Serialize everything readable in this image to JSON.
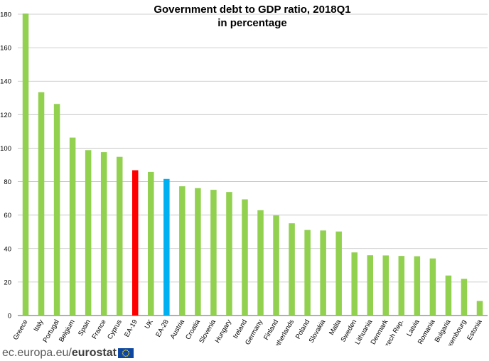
{
  "chart_data": {
    "type": "bar",
    "title_lines": [
      "Government debt to GDP ratio, 2018Q1",
      "in percentage"
    ],
    "categories": [
      "Greece",
      "Italy",
      "Portugal",
      "Belgium",
      "Spain",
      "France",
      "Cyprus",
      "EA-19",
      "UK",
      "EA-28",
      "Austria",
      "Croatia",
      "Slovenia",
      "Hungary",
      "Ireland",
      "Germany",
      "Finland",
      "Netherlands",
      "Poland",
      "Slovakia",
      "Malta",
      "Sweden",
      "Lithuania",
      "Denmark",
      "Czech Rep.",
      "Latvia",
      "Romania",
      "Bulgaria",
      "Luxembourg",
      "Estonia"
    ],
    "values": [
      180.4,
      133.4,
      126.4,
      106.3,
      98.8,
      97.6,
      94.8,
      86.8,
      85.8,
      81.6,
      77.2,
      76.1,
      75.1,
      73.8,
      69.4,
      62.9,
      59.8,
      55.1,
      51.1,
      50.8,
      50.2,
      37.7,
      36.0,
      35.9,
      35.6,
      35.4,
      34.1,
      23.9,
      21.9,
      8.7
    ],
    "ylim": [
      0,
      180
    ],
    "yticks": [
      0,
      20,
      40,
      60,
      80,
      100,
      120,
      140,
      160,
      180
    ],
    "colors": {
      "default": "#92d050",
      "EA-19": "#ff0000",
      "EA-28": "#00b0f0",
      "grid": "#bfbfbf",
      "axis": "#808080"
    },
    "highlighted": [
      "EA-19",
      "EA-28"
    ],
    "xlabel": "",
    "ylabel": "",
    "grid": true,
    "legend": "none"
  },
  "footer": {
    "domain": "ec.europa.eu/",
    "brand": "eurostat",
    "flag_icon": "eu-flag-icon"
  }
}
